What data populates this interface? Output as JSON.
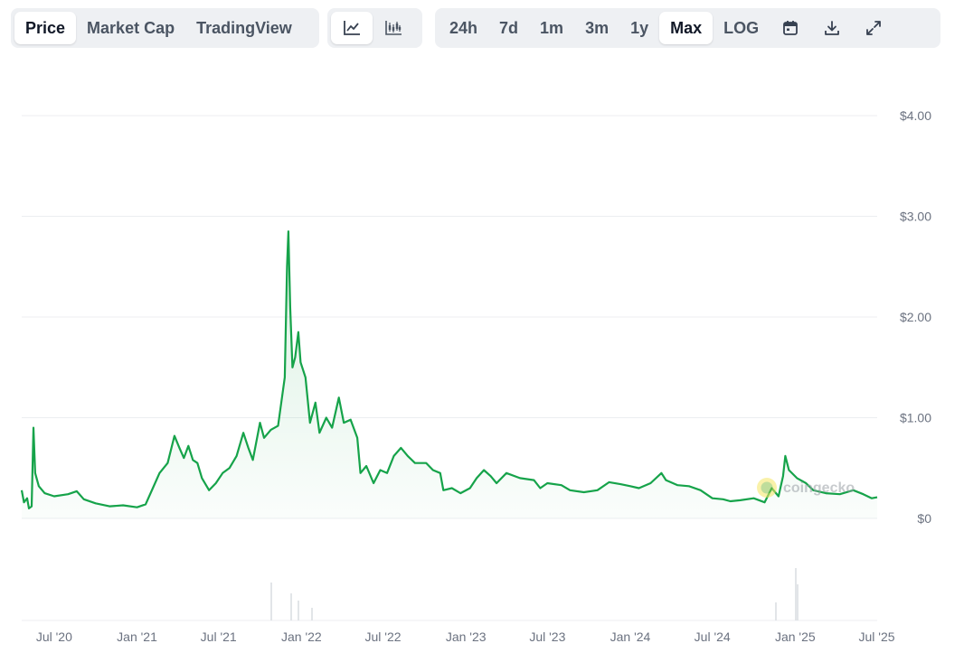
{
  "toolbar": {
    "view_tabs": [
      {
        "label": "Price",
        "active": true
      },
      {
        "label": "Market Cap",
        "active": false
      },
      {
        "label": "TradingView",
        "active": false
      }
    ],
    "chart_type_buttons": [
      {
        "icon": "line-chart-icon",
        "active": true
      },
      {
        "icon": "candlestick-chart-icon",
        "active": false
      }
    ],
    "ranges": [
      {
        "label": "24h",
        "active": false
      },
      {
        "label": "7d",
        "active": false
      },
      {
        "label": "1m",
        "active": false
      },
      {
        "label": "3m",
        "active": false
      },
      {
        "label": "1y",
        "active": false
      },
      {
        "label": "Max",
        "active": true
      },
      {
        "label": "LOG",
        "active": false
      }
    ],
    "tool_icons": [
      "calendar-icon",
      "download-icon",
      "expand-icon"
    ]
  },
  "watermark": {
    "text": "coingecko",
    "icon": "coingecko-logo-icon"
  },
  "colors": {
    "line": "#16a34a",
    "area": "#16a34a",
    "grid": "#eceef1",
    "volume": "#d9dce1"
  },
  "chart_data": {
    "type": "area",
    "title": "",
    "xlabel": "",
    "ylabel": "",
    "y_unit": "USD",
    "ylim": [
      0,
      4
    ],
    "y_ticks": [
      {
        "value": 0,
        "label": "$0"
      },
      {
        "value": 1,
        "label": "$1.00"
      },
      {
        "value": 2,
        "label": "$2.00"
      },
      {
        "value": 3,
        "label": "$3.00"
      },
      {
        "value": 4,
        "label": "$4.00"
      }
    ],
    "xlim": [
      "2020-04-20",
      "2025-07-02"
    ],
    "x_ticks": [
      {
        "date": "2020-07-01",
        "label": "Jul '20"
      },
      {
        "date": "2021-01-01",
        "label": "Jan '21"
      },
      {
        "date": "2021-07-01",
        "label": "Jul '21"
      },
      {
        "date": "2022-01-01",
        "label": "Jan '22"
      },
      {
        "date": "2022-07-01",
        "label": "Jul '22"
      },
      {
        "date": "2023-01-01",
        "label": "Jan '23"
      },
      {
        "date": "2023-07-01",
        "label": "Jul '23"
      },
      {
        "date": "2024-01-01",
        "label": "Jan '24"
      },
      {
        "date": "2024-07-01",
        "label": "Jul '24"
      },
      {
        "date": "2025-01-01",
        "label": "Jan '25"
      },
      {
        "date": "2025-07-01",
        "label": "Jul '25"
      }
    ],
    "grid": true,
    "legend": "none",
    "series": [
      {
        "points": [
          [
            "2020-04-20",
            0.28
          ],
          [
            "2020-04-25",
            0.16
          ],
          [
            "2020-05-02",
            0.2
          ],
          [
            "2020-05-06",
            0.1
          ],
          [
            "2020-05-12",
            0.12
          ],
          [
            "2020-05-16",
            0.9
          ],
          [
            "2020-05-20",
            0.45
          ],
          [
            "2020-05-28",
            0.32
          ],
          [
            "2020-06-10",
            0.25
          ],
          [
            "2020-07-01",
            0.22
          ],
          [
            "2020-08-01",
            0.24
          ],
          [
            "2020-08-20",
            0.27
          ],
          [
            "2020-09-05",
            0.19
          ],
          [
            "2020-10-01",
            0.15
          ],
          [
            "2020-11-01",
            0.12
          ],
          [
            "2020-12-01",
            0.13
          ],
          [
            "2021-01-01",
            0.11
          ],
          [
            "2021-01-20",
            0.14
          ],
          [
            "2021-02-05",
            0.3
          ],
          [
            "2021-02-20",
            0.45
          ],
          [
            "2021-03-10",
            0.55
          ],
          [
            "2021-03-25",
            0.82
          ],
          [
            "2021-04-05",
            0.7
          ],
          [
            "2021-04-15",
            0.6
          ],
          [
            "2021-04-25",
            0.72
          ],
          [
            "2021-05-05",
            0.58
          ],
          [
            "2021-05-15",
            0.55
          ],
          [
            "2021-05-25",
            0.4
          ],
          [
            "2021-06-10",
            0.28
          ],
          [
            "2021-06-25",
            0.35
          ],
          [
            "2021-07-10",
            0.45
          ],
          [
            "2021-07-25",
            0.5
          ],
          [
            "2021-08-10",
            0.62
          ],
          [
            "2021-08-25",
            0.85
          ],
          [
            "2021-09-05",
            0.7
          ],
          [
            "2021-09-15",
            0.58
          ],
          [
            "2021-10-01",
            0.95
          ],
          [
            "2021-10-10",
            0.8
          ],
          [
            "2021-10-25",
            0.88
          ],
          [
            "2021-11-10",
            0.92
          ],
          [
            "2021-11-25",
            1.4
          ],
          [
            "2021-11-30",
            2.5
          ],
          [
            "2021-12-03",
            2.85
          ],
          [
            "2021-12-07",
            2.1
          ],
          [
            "2021-12-12",
            1.5
          ],
          [
            "2021-12-18",
            1.6
          ],
          [
            "2021-12-25",
            1.85
          ],
          [
            "2021-12-30",
            1.55
          ],
          [
            "2022-01-10",
            1.4
          ],
          [
            "2022-01-20",
            0.95
          ],
          [
            "2022-02-01",
            1.15
          ],
          [
            "2022-02-10",
            0.85
          ],
          [
            "2022-02-25",
            1.0
          ],
          [
            "2022-03-10",
            0.9
          ],
          [
            "2022-03-25",
            1.2
          ],
          [
            "2022-04-05",
            0.95
          ],
          [
            "2022-04-20",
            0.98
          ],
          [
            "2022-05-05",
            0.8
          ],
          [
            "2022-05-12",
            0.45
          ],
          [
            "2022-05-25",
            0.52
          ],
          [
            "2022-06-10",
            0.35
          ],
          [
            "2022-06-25",
            0.48
          ],
          [
            "2022-07-10",
            0.45
          ],
          [
            "2022-07-25",
            0.62
          ],
          [
            "2022-08-10",
            0.7
          ],
          [
            "2022-08-25",
            0.62
          ],
          [
            "2022-09-10",
            0.55
          ],
          [
            "2022-10-05",
            0.55
          ],
          [
            "2022-10-20",
            0.48
          ],
          [
            "2022-11-05",
            0.45
          ],
          [
            "2022-11-12",
            0.28
          ],
          [
            "2022-12-01",
            0.3
          ],
          [
            "2022-12-20",
            0.25
          ],
          [
            "2023-01-10",
            0.3
          ],
          [
            "2023-01-25",
            0.4
          ],
          [
            "2023-02-10",
            0.48
          ],
          [
            "2023-02-25",
            0.42
          ],
          [
            "2023-03-10",
            0.35
          ],
          [
            "2023-04-01",
            0.45
          ],
          [
            "2023-05-01",
            0.4
          ],
          [
            "2023-06-01",
            0.38
          ],
          [
            "2023-06-15",
            0.3
          ],
          [
            "2023-07-01",
            0.35
          ],
          [
            "2023-08-01",
            0.33
          ],
          [
            "2023-08-20",
            0.28
          ],
          [
            "2023-09-20",
            0.26
          ],
          [
            "2023-10-20",
            0.28
          ],
          [
            "2023-11-15",
            0.36
          ],
          [
            "2023-12-10",
            0.34
          ],
          [
            "2024-01-01",
            0.32
          ],
          [
            "2024-01-20",
            0.3
          ],
          [
            "2024-02-15",
            0.35
          ],
          [
            "2024-03-10",
            0.45
          ],
          [
            "2024-03-20",
            0.38
          ],
          [
            "2024-04-15",
            0.33
          ],
          [
            "2024-05-10",
            0.32
          ],
          [
            "2024-06-05",
            0.28
          ],
          [
            "2024-07-01",
            0.2
          ],
          [
            "2024-07-25",
            0.19
          ],
          [
            "2024-08-10",
            0.17
          ],
          [
            "2024-09-01",
            0.18
          ],
          [
            "2024-10-01",
            0.2
          ],
          [
            "2024-10-25",
            0.16
          ],
          [
            "2024-11-10",
            0.3
          ],
          [
            "2024-11-25",
            0.22
          ],
          [
            "2024-12-05",
            0.42
          ],
          [
            "2024-12-10",
            0.62
          ],
          [
            "2024-12-18",
            0.48
          ],
          [
            "2025-01-05",
            0.4
          ],
          [
            "2025-01-25",
            0.35
          ],
          [
            "2025-02-10",
            0.28
          ],
          [
            "2025-03-10",
            0.25
          ],
          [
            "2025-04-10",
            0.24
          ],
          [
            "2025-05-10",
            0.28
          ],
          [
            "2025-06-01",
            0.24
          ],
          [
            "2025-06-20",
            0.2
          ],
          [
            "2025-07-02",
            0.21
          ]
        ]
      }
    ],
    "volume_note_hidden": true
  }
}
